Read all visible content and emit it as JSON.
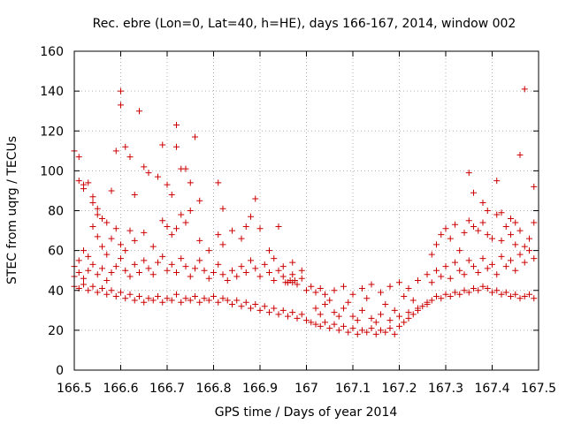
{
  "chart_data": {
    "type": "scatter",
    "title": "Rec. ebre (Lon=0, Lat=40, h=HE), days 166-167, 2014, window 002",
    "xlabel": "GPS time / Days of year 2014",
    "ylabel": "STEC from uqrg / TECUs",
    "xlim": [
      166.5,
      167.5
    ],
    "ylim": [
      0,
      160
    ],
    "xticks": [
      166.5,
      166.6,
      166.7,
      166.8,
      166.9,
      167,
      167.1,
      167.2,
      167.3,
      167.4,
      167.5
    ],
    "xtick_labels": [
      "166.5",
      "166.6",
      "166.7",
      "166.8",
      "166.9",
      "167",
      "167.1",
      "167.2",
      "167.3",
      "167.4",
      "167.5"
    ],
    "yticks": [
      0,
      20,
      40,
      60,
      80,
      100,
      120,
      140,
      160
    ],
    "ytick_labels": [
      "0",
      "20",
      "40",
      "60",
      "80",
      "100",
      "120",
      "140",
      "160"
    ],
    "marker": "+",
    "grid": true,
    "color": "#cc0000",
    "points": [
      [
        166.5,
        110
      ],
      [
        166.51,
        107
      ],
      [
        166.51,
        95
      ],
      [
        166.52,
        93
      ],
      [
        166.52,
        91
      ],
      [
        166.53,
        94
      ],
      [
        166.54,
        87
      ],
      [
        166.54,
        84
      ],
      [
        166.55,
        81
      ],
      [
        166.55,
        78
      ],
      [
        166.56,
        76
      ],
      [
        166.57,
        74
      ],
      [
        166.58,
        90
      ],
      [
        166.59,
        110
      ],
      [
        166.6,
        140
      ],
      [
        166.6,
        133
      ],
      [
        166.61,
        112
      ],
      [
        166.62,
        107
      ],
      [
        166.63,
        88
      ],
      [
        166.64,
        130
      ],
      [
        166.65,
        102
      ],
      [
        166.66,
        99
      ],
      [
        166.68,
        97
      ],
      [
        166.69,
        113
      ],
      [
        166.7,
        93
      ],
      [
        166.71,
        88
      ],
      [
        166.72,
        123
      ],
      [
        166.72,
        112
      ],
      [
        166.73,
        101
      ],
      [
        166.74,
        101
      ],
      [
        166.75,
        94
      ],
      [
        166.76,
        117
      ],
      [
        166.77,
        85
      ],
      [
        166.81,
        94
      ],
      [
        166.82,
        81
      ],
      [
        166.89,
        86
      ],
      [
        166.94,
        72
      ],
      [
        167.35,
        99
      ],
      [
        167.36,
        89
      ],
      [
        167.38,
        84
      ],
      [
        167.39,
        80
      ],
      [
        167.41,
        95
      ],
      [
        167.42,
        79
      ],
      [
        167.44,
        76
      ],
      [
        167.45,
        74
      ],
      [
        167.46,
        108
      ],
      [
        167.47,
        141
      ],
      [
        167.49,
        92
      ],
      [
        166.5,
        47
      ],
      [
        166.51,
        55
      ],
      [
        166.52,
        60
      ],
      [
        166.53,
        57
      ],
      [
        166.54,
        72
      ],
      [
        166.55,
        67
      ],
      [
        166.56,
        62
      ],
      [
        166.57,
        58
      ],
      [
        166.58,
        66
      ],
      [
        166.59,
        71
      ],
      [
        166.6,
        63
      ],
      [
        166.61,
        60
      ],
      [
        166.62,
        70
      ],
      [
        166.63,
        65
      ],
      [
        166.65,
        69
      ],
      [
        166.67,
        62
      ],
      [
        166.69,
        75
      ],
      [
        166.7,
        72
      ],
      [
        166.71,
        68
      ],
      [
        166.72,
        71
      ],
      [
        166.73,
        78
      ],
      [
        166.74,
        74
      ],
      [
        166.75,
        80
      ],
      [
        166.77,
        65
      ],
      [
        166.79,
        60
      ],
      [
        166.81,
        68
      ],
      [
        166.82,
        63
      ],
      [
        166.84,
        70
      ],
      [
        166.86,
        66
      ],
      [
        166.87,
        72
      ],
      [
        166.88,
        77
      ],
      [
        166.9,
        71
      ],
      [
        166.92,
        60
      ],
      [
        166.93,
        56
      ],
      [
        166.95,
        52
      ],
      [
        166.97,
        54
      ],
      [
        166.99,
        50
      ],
      [
        167.27,
        58
      ],
      [
        167.28,
        63
      ],
      [
        167.29,
        68
      ],
      [
        167.3,
        71
      ],
      [
        167.31,
        66
      ],
      [
        167.32,
        73
      ],
      [
        167.33,
        60
      ],
      [
        167.34,
        69
      ],
      [
        167.35,
        75
      ],
      [
        167.36,
        72
      ],
      [
        167.37,
        70
      ],
      [
        167.38,
        74
      ],
      [
        167.39,
        68
      ],
      [
        167.4,
        66
      ],
      [
        167.41,
        78
      ],
      [
        167.42,
        65
      ],
      [
        167.43,
        72
      ],
      [
        167.44,
        68
      ],
      [
        167.45,
        63
      ],
      [
        167.46,
        70
      ],
      [
        167.47,
        62
      ],
      [
        167.48,
        66
      ],
      [
        167.49,
        74
      ],
      [
        166.5,
        52
      ],
      [
        166.51,
        49
      ],
      [
        166.52,
        46
      ],
      [
        166.53,
        50
      ],
      [
        166.54,
        53
      ],
      [
        166.55,
        48
      ],
      [
        166.56,
        51
      ],
      [
        166.57,
        45
      ],
      [
        166.58,
        49
      ],
      [
        166.59,
        52
      ],
      [
        166.6,
        56
      ],
      [
        166.61,
        50
      ],
      [
        166.62,
        47
      ],
      [
        166.63,
        53
      ],
      [
        166.64,
        49
      ],
      [
        166.65,
        55
      ],
      [
        166.66,
        51
      ],
      [
        166.67,
        48
      ],
      [
        166.68,
        54
      ],
      [
        166.69,
        57
      ],
      [
        166.7,
        50
      ],
      [
        166.71,
        53
      ],
      [
        166.72,
        49
      ],
      [
        166.73,
        56
      ],
      [
        166.74,
        52
      ],
      [
        166.75,
        47
      ],
      [
        166.76,
        51
      ],
      [
        166.77,
        55
      ],
      [
        166.78,
        50
      ],
      [
        166.79,
        46
      ],
      [
        166.8,
        49
      ],
      [
        166.81,
        53
      ],
      [
        166.82,
        48
      ],
      [
        166.83,
        45
      ],
      [
        166.84,
        50
      ],
      [
        166.85,
        47
      ],
      [
        166.86,
        52
      ],
      [
        166.87,
        49
      ],
      [
        166.88,
        55
      ],
      [
        166.89,
        51
      ],
      [
        166.9,
        47
      ],
      [
        166.91,
        53
      ],
      [
        166.92,
        49
      ],
      [
        166.93,
        45
      ],
      [
        166.94,
        50
      ],
      [
        166.95,
        47
      ],
      [
        166.96,
        44
      ],
      [
        166.97,
        48
      ],
      [
        166.98,
        43
      ],
      [
        166.99,
        46
      ],
      [
        167.0,
        40
      ],
      [
        167.01,
        42
      ],
      [
        167.02,
        39
      ],
      [
        167.03,
        41
      ],
      [
        167.04,
        38
      ],
      [
        167.06,
        40
      ],
      [
        167.08,
        42
      ],
      [
        167.1,
        38
      ],
      [
        167.12,
        41
      ],
      [
        167.14,
        43
      ],
      [
        167.16,
        39
      ],
      [
        167.18,
        42
      ],
      [
        167.2,
        44
      ],
      [
        167.22,
        41
      ],
      [
        167.24,
        45
      ],
      [
        167.26,
        48
      ],
      [
        167.27,
        44
      ],
      [
        167.28,
        50
      ],
      [
        167.29,
        47
      ],
      [
        167.3,
        52
      ],
      [
        167.31,
        46
      ],
      [
        167.32,
        54
      ],
      [
        167.33,
        50
      ],
      [
        167.34,
        48
      ],
      [
        167.35,
        55
      ],
      [
        167.36,
        52
      ],
      [
        167.37,
        49
      ],
      [
        167.38,
        56
      ],
      [
        167.39,
        51
      ],
      [
        167.4,
        53
      ],
      [
        167.41,
        48
      ],
      [
        167.42,
        57
      ],
      [
        167.43,
        52
      ],
      [
        167.44,
        55
      ],
      [
        167.45,
        50
      ],
      [
        167.46,
        58
      ],
      [
        167.47,
        54
      ],
      [
        167.48,
        60
      ],
      [
        167.49,
        56
      ],
      [
        166.5,
        42
      ],
      [
        166.51,
        41
      ],
      [
        166.52,
        43
      ],
      [
        166.53,
        40
      ],
      [
        166.54,
        42
      ],
      [
        166.55,
        39
      ],
      [
        166.56,
        41
      ],
      [
        166.57,
        38
      ],
      [
        166.58,
        40
      ],
      [
        166.59,
        37
      ],
      [
        166.6,
        39
      ],
      [
        166.61,
        36
      ],
      [
        166.62,
        38
      ],
      [
        166.63,
        35
      ],
      [
        166.64,
        37
      ],
      [
        166.65,
        34
      ],
      [
        166.66,
        36
      ],
      [
        166.67,
        35
      ],
      [
        166.68,
        37
      ],
      [
        166.69,
        34
      ],
      [
        166.7,
        36
      ],
      [
        166.71,
        35
      ],
      [
        166.72,
        38
      ],
      [
        166.73,
        34
      ],
      [
        166.74,
        36
      ],
      [
        166.75,
        35
      ],
      [
        166.76,
        37
      ],
      [
        166.77,
        34
      ],
      [
        166.78,
        36
      ],
      [
        166.79,
        35
      ],
      [
        166.8,
        37
      ],
      [
        166.81,
        34
      ],
      [
        166.82,
        36
      ],
      [
        166.83,
        35
      ],
      [
        166.84,
        33
      ],
      [
        166.85,
        35
      ],
      [
        166.86,
        32
      ],
      [
        166.87,
        34
      ],
      [
        166.88,
        31
      ],
      [
        166.89,
        33
      ],
      [
        166.9,
        30
      ],
      [
        166.91,
        32
      ],
      [
        166.92,
        29
      ],
      [
        166.93,
        31
      ],
      [
        166.94,
        28
      ],
      [
        166.95,
        30
      ],
      [
        166.96,
        27
      ],
      [
        166.97,
        29
      ],
      [
        166.98,
        26
      ],
      [
        166.99,
        28
      ],
      [
        167.0,
        25
      ],
      [
        167.01,
        24
      ],
      [
        167.02,
        23
      ],
      [
        167.03,
        22
      ],
      [
        167.04,
        24
      ],
      [
        167.05,
        21
      ],
      [
        167.06,
        23
      ],
      [
        167.07,
        20
      ],
      [
        167.08,
        22
      ],
      [
        167.09,
        19
      ],
      [
        167.1,
        21
      ],
      [
        167.11,
        18
      ],
      [
        167.12,
        20
      ],
      [
        167.13,
        19
      ],
      [
        167.14,
        21
      ],
      [
        167.15,
        18
      ],
      [
        167.16,
        20
      ],
      [
        167.17,
        19
      ],
      [
        167.18,
        21
      ],
      [
        167.19,
        18
      ],
      [
        167.2,
        22
      ],
      [
        167.21,
        24
      ],
      [
        167.22,
        26
      ],
      [
        167.23,
        28
      ],
      [
        167.24,
        30
      ],
      [
        167.25,
        32
      ],
      [
        167.26,
        34
      ],
      [
        167.27,
        35
      ],
      [
        167.28,
        37
      ],
      [
        167.29,
        36
      ],
      [
        167.3,
        38
      ],
      [
        167.31,
        37
      ],
      [
        167.32,
        39
      ],
      [
        167.33,
        38
      ],
      [
        167.34,
        40
      ],
      [
        167.35,
        39
      ],
      [
        167.36,
        41
      ],
      [
        167.37,
        40
      ],
      [
        167.38,
        42
      ],
      [
        167.39,
        41
      ],
      [
        167.4,
        39
      ],
      [
        167.41,
        40
      ],
      [
        167.42,
        38
      ],
      [
        167.43,
        39
      ],
      [
        167.44,
        37
      ],
      [
        167.45,
        38
      ],
      [
        167.46,
        36
      ],
      [
        167.47,
        37
      ],
      [
        167.48,
        38
      ],
      [
        167.49,
        36
      ],
      [
        166.96,
        44
      ],
      [
        166.965,
        45
      ],
      [
        166.97,
        44
      ],
      [
        166.975,
        45
      ],
      [
        166.955,
        44
      ],
      [
        167.02,
        31
      ],
      [
        167.04,
        33
      ],
      [
        167.06,
        29
      ],
      [
        167.08,
        31
      ],
      [
        167.1,
        27
      ],
      [
        167.12,
        30
      ],
      [
        167.14,
        26
      ],
      [
        167.16,
        28
      ],
      [
        167.18,
        25
      ],
      [
        167.2,
        27
      ],
      [
        167.22,
        29
      ],
      [
        167.24,
        31
      ],
      [
        167.26,
        33
      ],
      [
        167.05,
        35
      ],
      [
        167.09,
        34
      ],
      [
        167.13,
        36
      ],
      [
        167.17,
        33
      ],
      [
        167.21,
        37
      ],
      [
        167.15,
        24
      ],
      [
        167.11,
        25
      ],
      [
        167.07,
        27
      ],
      [
        167.03,
        28
      ],
      [
        167.19,
        30
      ],
      [
        167.23,
        35
      ]
    ]
  }
}
